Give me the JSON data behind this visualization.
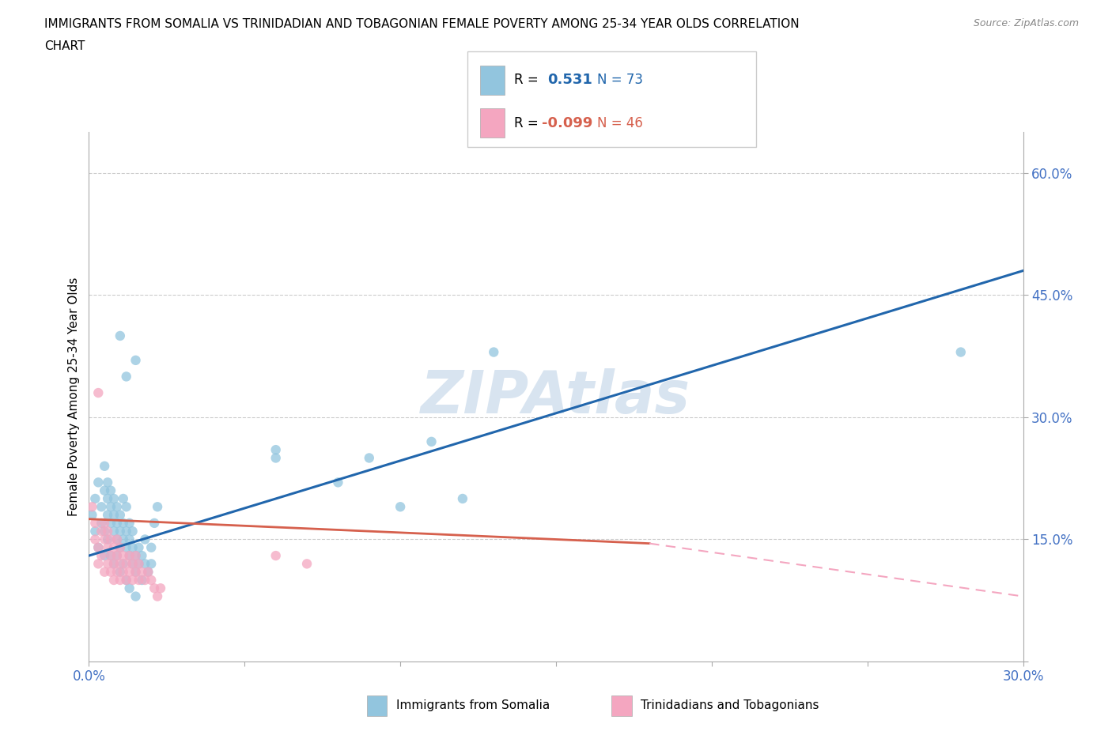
{
  "title_line1": "IMMIGRANTS FROM SOMALIA VS TRINIDADIAN AND TOBAGONIAN FEMALE POVERTY AMONG 25-34 YEAR OLDS CORRELATION",
  "title_line2": "CHART",
  "source_text": "Source: ZipAtlas.com",
  "ylabel": "Female Poverty Among 25-34 Year Olds",
  "xlim": [
    0.0,
    0.3
  ],
  "ylim": [
    0.0,
    0.65
  ],
  "yticks": [
    0.0,
    0.15,
    0.3,
    0.45,
    0.6
  ],
  "ytick_labels": [
    "",
    "15.0%",
    "30.0%",
    "45.0%",
    "60.0%"
  ],
  "xticks": [
    0.0,
    0.05,
    0.1,
    0.15,
    0.2,
    0.25,
    0.3
  ],
  "xtick_labels": [
    "0.0%",
    "",
    "",
    "",
    "",
    "",
    "30.0%"
  ],
  "color_somalia": "#92c5de",
  "color_trinidadian": "#f4a6c0",
  "trendline_somalia_color": "#2166ac",
  "trendline_trinidadian_solid_color": "#d6604d",
  "trendline_trinidadian_dash_color": "#f4a6c0",
  "watermark_color": "#d8e4f0",
  "somalia_points": [
    [
      0.001,
      0.18
    ],
    [
      0.002,
      0.2
    ],
    [
      0.002,
      0.16
    ],
    [
      0.003,
      0.22
    ],
    [
      0.003,
      0.14
    ],
    [
      0.004,
      0.19
    ],
    [
      0.004,
      0.17
    ],
    [
      0.005,
      0.21
    ],
    [
      0.005,
      0.13
    ],
    [
      0.005,
      0.24
    ],
    [
      0.005,
      0.16
    ],
    [
      0.006,
      0.18
    ],
    [
      0.006,
      0.2
    ],
    [
      0.006,
      0.15
    ],
    [
      0.006,
      0.22
    ],
    [
      0.007,
      0.17
    ],
    [
      0.007,
      0.19
    ],
    [
      0.007,
      0.13
    ],
    [
      0.007,
      0.21
    ],
    [
      0.008,
      0.16
    ],
    [
      0.008,
      0.18
    ],
    [
      0.008,
      0.12
    ],
    [
      0.008,
      0.2
    ],
    [
      0.009,
      0.15
    ],
    [
      0.009,
      0.17
    ],
    [
      0.009,
      0.13
    ],
    [
      0.009,
      0.19
    ],
    [
      0.01,
      0.14
    ],
    [
      0.01,
      0.16
    ],
    [
      0.01,
      0.11
    ],
    [
      0.01,
      0.18
    ],
    [
      0.011,
      0.15
    ],
    [
      0.011,
      0.17
    ],
    [
      0.011,
      0.12
    ],
    [
      0.011,
      0.2
    ],
    [
      0.012,
      0.14
    ],
    [
      0.012,
      0.16
    ],
    [
      0.012,
      0.1
    ],
    [
      0.012,
      0.19
    ],
    [
      0.013,
      0.13
    ],
    [
      0.013,
      0.15
    ],
    [
      0.013,
      0.09
    ],
    [
      0.013,
      0.17
    ],
    [
      0.014,
      0.12
    ],
    [
      0.014,
      0.14
    ],
    [
      0.014,
      0.16
    ],
    [
      0.015,
      0.11
    ],
    [
      0.015,
      0.13
    ],
    [
      0.015,
      0.08
    ],
    [
      0.016,
      0.12
    ],
    [
      0.016,
      0.14
    ],
    [
      0.017,
      0.1
    ],
    [
      0.017,
      0.13
    ],
    [
      0.018,
      0.12
    ],
    [
      0.018,
      0.15
    ],
    [
      0.019,
      0.11
    ],
    [
      0.02,
      0.14
    ],
    [
      0.02,
      0.12
    ],
    [
      0.021,
      0.17
    ],
    [
      0.022,
      0.19
    ],
    [
      0.015,
      0.37
    ],
    [
      0.01,
      0.4
    ],
    [
      0.012,
      0.35
    ],
    [
      0.06,
      0.25
    ],
    [
      0.06,
      0.26
    ],
    [
      0.08,
      0.22
    ],
    [
      0.09,
      0.25
    ],
    [
      0.1,
      0.19
    ],
    [
      0.11,
      0.27
    ],
    [
      0.12,
      0.2
    ],
    [
      0.13,
      0.38
    ],
    [
      0.28,
      0.38
    ]
  ],
  "trinidadian_points": [
    [
      0.001,
      0.19
    ],
    [
      0.002,
      0.15
    ],
    [
      0.002,
      0.17
    ],
    [
      0.003,
      0.14
    ],
    [
      0.003,
      0.12
    ],
    [
      0.004,
      0.16
    ],
    [
      0.004,
      0.13
    ],
    [
      0.005,
      0.15
    ],
    [
      0.005,
      0.11
    ],
    [
      0.005,
      0.17
    ],
    [
      0.006,
      0.14
    ],
    [
      0.006,
      0.12
    ],
    [
      0.006,
      0.16
    ],
    [
      0.007,
      0.13
    ],
    [
      0.007,
      0.11
    ],
    [
      0.007,
      0.15
    ],
    [
      0.008,
      0.12
    ],
    [
      0.008,
      0.1
    ],
    [
      0.008,
      0.14
    ],
    [
      0.009,
      0.13
    ],
    [
      0.009,
      0.11
    ],
    [
      0.009,
      0.15
    ],
    [
      0.01,
      0.12
    ],
    [
      0.01,
      0.1
    ],
    [
      0.01,
      0.14
    ],
    [
      0.011,
      0.13
    ],
    [
      0.011,
      0.11
    ],
    [
      0.012,
      0.12
    ],
    [
      0.012,
      0.1
    ],
    [
      0.013,
      0.13
    ],
    [
      0.013,
      0.11
    ],
    [
      0.014,
      0.12
    ],
    [
      0.014,
      0.1
    ],
    [
      0.015,
      0.11
    ],
    [
      0.015,
      0.13
    ],
    [
      0.016,
      0.12
    ],
    [
      0.016,
      0.1
    ],
    [
      0.017,
      0.11
    ],
    [
      0.018,
      0.1
    ],
    [
      0.019,
      0.11
    ],
    [
      0.02,
      0.1
    ],
    [
      0.021,
      0.09
    ],
    [
      0.022,
      0.08
    ],
    [
      0.023,
      0.09
    ],
    [
      0.003,
      0.33
    ],
    [
      0.06,
      0.13
    ],
    [
      0.07,
      0.12
    ]
  ],
  "trendline_somalia_x0": 0.0,
  "trendline_somalia_x1": 0.3,
  "trendline_somalia_y0": 0.13,
  "trendline_somalia_y1": 0.48,
  "trendline_trin_solid_x0": 0.0,
  "trendline_trin_solid_x1": 0.18,
  "trendline_trin_solid_y0": 0.175,
  "trendline_trin_solid_y1": 0.145,
  "trendline_trin_dash_x0": 0.18,
  "trendline_trin_dash_x1": 0.3,
  "trendline_trin_dash_y0": 0.145,
  "trendline_trin_dash_y1": 0.08
}
